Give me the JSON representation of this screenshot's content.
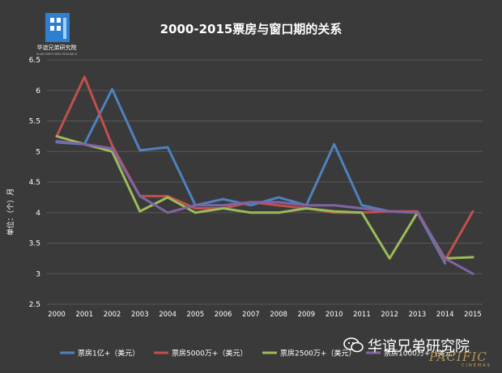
{
  "logo": {
    "name": "华谊兄弟研究院",
    "subtitle": "HUAYI BROTHERS RESEARCH"
  },
  "watermark": {
    "text": "华谊兄弟研究院",
    "brand": "PACIFIC",
    "brand_sub": "CINEMAS"
  },
  "colors": {
    "background": "#3a3a3a",
    "grid": "#585858",
    "text": "#ffffff"
  },
  "chart_data": {
    "type": "line",
    "title": "2000-2015票房与窗口期的关系",
    "ylabel": "单位：（个）月",
    "xlabel": "",
    "x": [
      "2000",
      "2001",
      "2002",
      "2003",
      "2004",
      "2005",
      "2006",
      "2007",
      "2008",
      "2009",
      "2010",
      "2011",
      "2012",
      "2013",
      "2014",
      "2015"
    ],
    "ylim": [
      2.5,
      6.5
    ],
    "yticks": [
      "2.5",
      "3",
      "3.5",
      "4",
      "4.5",
      "5",
      "5.5",
      "6",
      "6.5"
    ],
    "grid": true,
    "legend": "bottom",
    "series": [
      {
        "name": "票房1亿+（美元）",
        "color": "#4f81bd",
        "values": [
          5.15,
          5.12,
          6.02,
          5.02,
          5.07,
          4.12,
          4.22,
          4.12,
          4.25,
          4.12,
          5.12,
          4.12,
          4.02,
          4.0,
          3.17,
          null
        ]
      },
      {
        "name": "票房5000万+（美元）",
        "color": "#c0504d",
        "values": [
          5.25,
          6.22,
          5.1,
          4.27,
          4.27,
          4.07,
          4.07,
          4.17,
          4.12,
          4.07,
          4.0,
          4.0,
          4.02,
          4.02,
          3.22,
          4.02
        ]
      },
      {
        "name": "票房2500万+（美元）",
        "color": "#9bbb59",
        "values": [
          5.25,
          5.12,
          5.0,
          4.02,
          4.25,
          4.0,
          4.07,
          4.0,
          4.0,
          4.07,
          4.02,
          4.0,
          3.25,
          4.0,
          3.25,
          3.27
        ]
      },
      {
        "name": "票房1000万+（美元）",
        "color": "#8064a2",
        "values": [
          5.17,
          5.12,
          5.05,
          4.27,
          4.0,
          4.12,
          4.12,
          4.17,
          4.17,
          4.12,
          4.12,
          4.07,
          4.02,
          4.0,
          3.25,
          3.0
        ]
      }
    ]
  }
}
